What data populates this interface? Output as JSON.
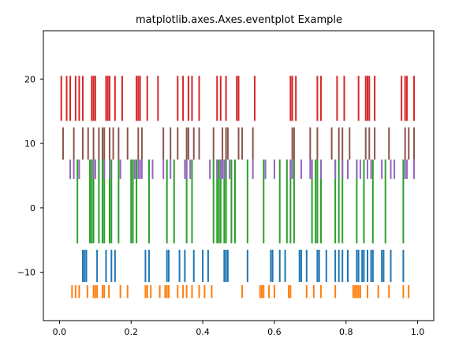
{
  "chart_data": {
    "type": "eventplot",
    "title": "matplotlib.axes.Axes.eventplot Example",
    "xlabel": "",
    "ylabel": "",
    "xlim": [
      -0.045,
      1.045
    ],
    "ylim": [
      -17.5,
      27.5
    ],
    "grid": false,
    "x_ticks": [
      0.0,
      0.2,
      0.4,
      0.6,
      0.8,
      1.0
    ],
    "x_tick_labels": [
      "0.0",
      "0.2",
      "0.4",
      "0.6",
      "0.8",
      "1.0"
    ],
    "y_ticks": [
      -10,
      0,
      10,
      20
    ],
    "y_tick_labels": [
      "−10",
      "0",
      "10",
      "20"
    ],
    "series": [
      {
        "color": "#ff7f0e",
        "lineoffset": -13,
        "linelength": 2,
        "events": [
          0.035,
          0.045,
          0.055,
          0.078,
          0.095,
          0.1,
          0.105,
          0.12,
          0.125,
          0.138,
          0.17,
          0.19,
          0.24,
          0.245,
          0.255,
          0.28,
          0.295,
          0.3,
          0.305,
          0.33,
          0.345,
          0.355,
          0.37,
          0.39,
          0.405,
          0.425,
          0.51,
          0.56,
          0.565,
          0.57,
          0.585,
          0.6,
          0.64,
          0.645,
          0.69,
          0.71,
          0.73,
          0.77,
          0.82,
          0.825,
          0.83,
          0.835,
          0.84,
          0.86,
          0.89,
          0.92,
          0.96,
          0.975
        ]
      },
      {
        "color": "#1f77b4",
        "lineoffset": -9,
        "linelength": 5,
        "events": [
          0.065,
          0.07,
          0.075,
          0.105,
          0.13,
          0.145,
          0.155,
          0.24,
          0.25,
          0.3,
          0.305,
          0.335,
          0.35,
          0.375,
          0.4,
          0.415,
          0.46,
          0.465,
          0.47,
          0.525,
          0.59,
          0.595,
          0.615,
          0.63,
          0.67,
          0.675,
          0.69,
          0.72,
          0.725,
          0.745,
          0.77,
          0.78,
          0.79,
          0.805,
          0.83,
          0.835,
          0.845,
          0.85,
          0.86,
          0.87,
          0.875,
          0.9,
          0.905,
          0.925,
          0.96
        ]
      },
      {
        "color": "#2ca02c",
        "lineoffset": 1,
        "linelength": 13,
        "events": [
          0.05,
          0.085,
          0.09,
          0.095,
          0.11,
          0.12,
          0.125,
          0.14,
          0.145,
          0.165,
          0.2,
          0.205,
          0.215,
          0.25,
          0.3,
          0.32,
          0.355,
          0.37,
          0.43,
          0.44,
          0.445,
          0.45,
          0.46,
          0.465,
          0.48,
          0.49,
          0.525,
          0.57,
          0.615,
          0.635,
          0.645,
          0.655,
          0.705,
          0.715,
          0.72,
          0.73,
          0.77,
          0.78,
          0.79,
          0.83,
          0.85,
          0.875,
          0.91,
          0.96
        ]
      },
      {
        "color": "#9467bd",
        "lineoffset": 6,
        "linelength": 3,
        "events": [
          0.03,
          0.04,
          0.055,
          0.095,
          0.1,
          0.125,
          0.14,
          0.17,
          0.21,
          0.22,
          0.225,
          0.23,
          0.26,
          0.29,
          0.31,
          0.35,
          0.355,
          0.365,
          0.42,
          0.44,
          0.45,
          0.455,
          0.46,
          0.475,
          0.54,
          0.575,
          0.6,
          0.645,
          0.65,
          0.675,
          0.7,
          0.705,
          0.73,
          0.77,
          0.79,
          0.805,
          0.83,
          0.84,
          0.86,
          0.87,
          0.9,
          0.925,
          0.935,
          0.965,
          0.97,
          0.99
        ]
      },
      {
        "color": "#8c564b",
        "lineoffset": 10,
        "linelength": 5,
        "events": [
          0.01,
          0.04,
          0.065,
          0.08,
          0.095,
          0.11,
          0.12,
          0.125,
          0.14,
          0.15,
          0.165,
          0.19,
          0.22,
          0.23,
          0.29,
          0.31,
          0.33,
          0.355,
          0.36,
          0.375,
          0.39,
          0.43,
          0.455,
          0.465,
          0.47,
          0.5,
          0.51,
          0.54,
          0.65,
          0.655,
          0.7,
          0.72,
          0.76,
          0.78,
          0.79,
          0.81,
          0.855,
          0.865,
          0.88,
          0.92,
          0.965,
          0.975,
          0.99
        ]
      },
      {
        "color": "#d62728",
        "lineoffset": 17,
        "linelength": 7,
        "events": [
          0.005,
          0.02,
          0.03,
          0.045,
          0.055,
          0.065,
          0.09,
          0.095,
          0.1,
          0.13,
          0.135,
          0.14,
          0.155,
          0.175,
          0.215,
          0.22,
          0.225,
          0.245,
          0.275,
          0.33,
          0.345,
          0.36,
          0.37,
          0.39,
          0.44,
          0.45,
          0.465,
          0.495,
          0.5,
          0.545,
          0.645,
          0.65,
          0.66,
          0.72,
          0.73,
          0.775,
          0.795,
          0.835,
          0.855,
          0.86,
          0.865,
          0.88,
          0.955,
          0.965,
          0.97,
          0.99
        ]
      }
    ]
  }
}
